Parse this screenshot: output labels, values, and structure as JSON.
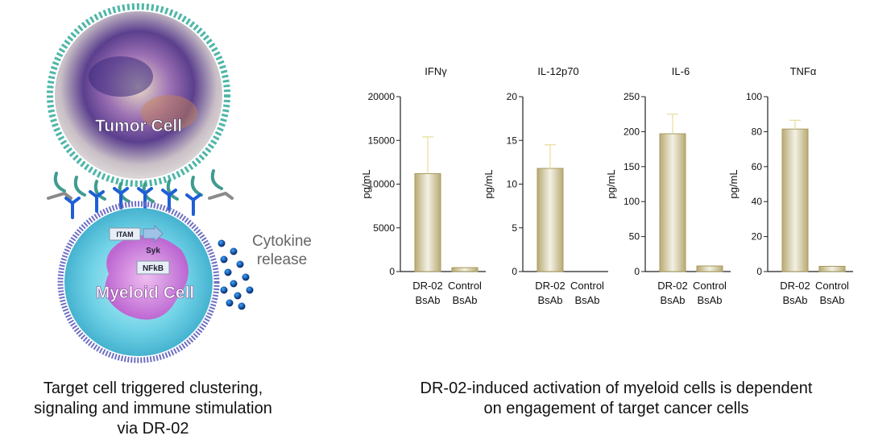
{
  "illustration": {
    "tumor_cell_label": "Tumor Cell",
    "myeloid_cell_label": "Myeloid Cell",
    "itam_label": "ITAM",
    "syk_label": "Syk",
    "nfkb_label": "NFkB",
    "cytokine_label_line1": "Cytokine",
    "cytokine_label_line2": "release"
  },
  "captions": {
    "left": [
      "Target cell triggered clustering,",
      "signaling and immune stimulation",
      "via DR-02"
    ],
    "right": [
      "DR-02-induced activation of myeloid cells is dependent",
      "on engagement of target cancer cells"
    ]
  },
  "colors": {
    "bar_edge": "#a89a5e",
    "bar_fill_center": "#f3f1e6",
    "bar_fill_edge": "#b8aa72",
    "error_bar": "#e8dc9a",
    "axis": "#222222"
  },
  "chart_data": [
    {
      "type": "bar",
      "title": "IFNγ",
      "ylabel": "pg/mL",
      "ylim": [
        0,
        20000
      ],
      "yticks": [
        0,
        5000,
        10000,
        15000,
        20000
      ],
      "categories": [
        [
          "DR-02",
          "BsAb"
        ],
        [
          "Control",
          "BsAb"
        ]
      ],
      "values": [
        11200,
        450
      ],
      "errors": [
        4200,
        0
      ]
    },
    {
      "type": "bar",
      "title": "IL-12p70",
      "ylabel": "pg/mL",
      "ylim": [
        0,
        20
      ],
      "yticks": [
        0,
        5,
        10,
        15,
        20
      ],
      "categories": [
        [
          "DR-02",
          "BsAb"
        ],
        [
          "Control",
          "BsAb"
        ]
      ],
      "values": [
        11.8,
        0
      ],
      "errors": [
        2.7,
        0
      ]
    },
    {
      "type": "bar",
      "title": "IL-6",
      "ylabel": "pg/mL",
      "ylim": [
        0,
        250
      ],
      "yticks": [
        0,
        50,
        100,
        150,
        200,
        250
      ],
      "categories": [
        [
          "DR-02",
          "BsAb"
        ],
        [
          "Control",
          "BsAb"
        ]
      ],
      "values": [
        197,
        8
      ],
      "errors": [
        28,
        0
      ]
    },
    {
      "type": "bar",
      "title": "TNFα",
      "ylabel": "pg/mL",
      "ylim": [
        0,
        100
      ],
      "yticks": [
        0,
        20,
        40,
        60,
        80,
        100
      ],
      "categories": [
        [
          "DR-02",
          "BsAb"
        ],
        [
          "Control",
          "BsAb"
        ]
      ],
      "values": [
        81.5,
        3
      ],
      "errors": [
        5,
        0
      ]
    }
  ]
}
